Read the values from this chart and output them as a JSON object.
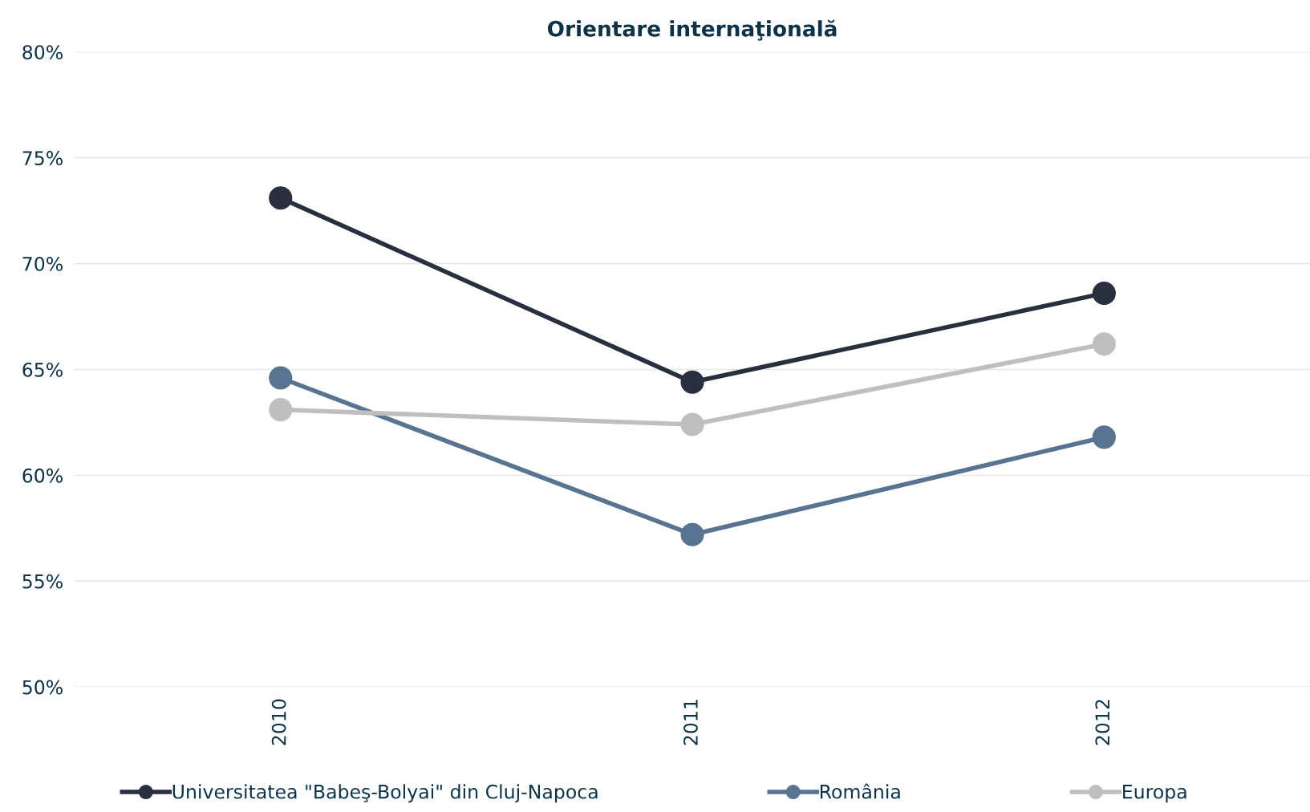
{
  "chart_data": {
    "type": "line",
    "title": "Orientare internaţională",
    "categories": [
      "2010",
      "2011",
      "2012"
    ],
    "series": [
      {
        "name": "Universitatea \"Babeş-Bolyai\" din Cluj-Napoca",
        "color": "#28303f",
        "values": [
          73.1,
          64.4,
          68.6
        ]
      },
      {
        "name": "România",
        "color": "#587490",
        "values": [
          64.6,
          57.2,
          61.8
        ]
      },
      {
        "name": "Europa",
        "color": "#bfbfbf",
        "values": [
          63.1,
          62.4,
          66.2
        ]
      }
    ],
    "ylim": [
      50,
      80
    ],
    "yticks": [
      {
        "value": 50,
        "label": "50%"
      },
      {
        "value": 55,
        "label": "55%"
      },
      {
        "value": 60,
        "label": "60%"
      },
      {
        "value": 65,
        "label": "65%"
      },
      {
        "value": 70,
        "label": "70%"
      },
      {
        "value": 75,
        "label": "75%"
      },
      {
        "value": 80,
        "label": "80%"
      }
    ],
    "grid": "y",
    "legend": "bottom",
    "marker": "circle",
    "line_style": "solid"
  }
}
